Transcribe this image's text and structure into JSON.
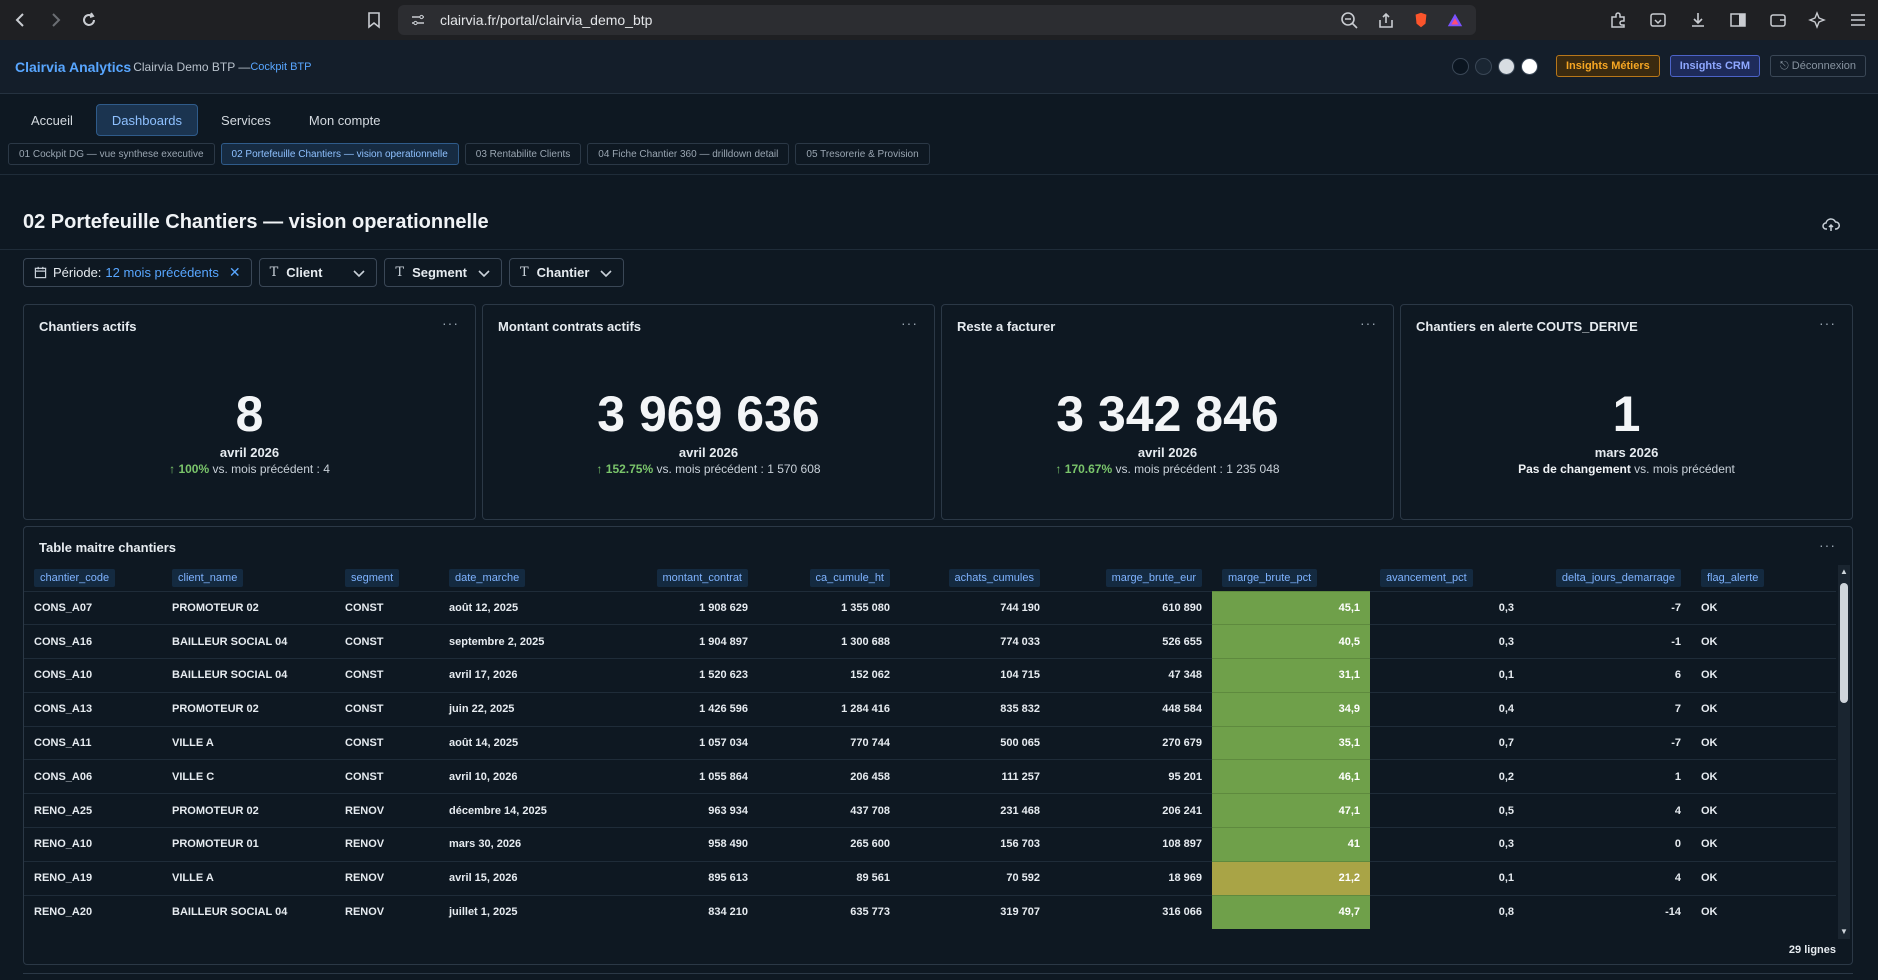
{
  "browser": {
    "url": "clairvia.fr/portal/clairvia_demo_btp"
  },
  "header": {
    "brand": "Clairvia Analytics",
    "workspace": "Clairvia Demo BTP — ",
    "cockpit": "Cockpit BTP",
    "buttons": {
      "metiers": "Insights Métiers",
      "crm": "Insights CRM",
      "logout": "⎋ Déconnexion"
    }
  },
  "main_tabs": [
    "Accueil",
    "Dashboards",
    "Services",
    "Mon compte"
  ],
  "sub_tabs": [
    "01 Cockpit DG — vue synthese executive",
    "02 Portefeuille Chantiers — vision operationnelle",
    "03 Rentabilite Clients",
    "04 Fiche Chantier 360 — drilldown detail",
    "05 Tresorerie & Provision"
  ],
  "dashboard": {
    "title": "02 Portefeuille Chantiers — vision operationnelle"
  },
  "filters": {
    "period_label": "Période:",
    "period_value": "12 mois précédents",
    "client": "Client",
    "segment": "Segment",
    "chantier": "Chantier"
  },
  "kpis": [
    {
      "title": "Chantiers actifs",
      "value": "8",
      "period": "avril 2026",
      "pct": "100%",
      "text": " vs. mois précédent : 4"
    },
    {
      "title": "Montant contrats actifs",
      "value": "3 969 636",
      "period": "avril 2026",
      "pct": "152.75%",
      "text": " vs. mois précédent : 1 570 608"
    },
    {
      "title": "Reste a facturer",
      "value": "3 342 846",
      "period": "avril 2026",
      "pct": "170.67%",
      "text": " vs. mois précédent : 1 235 048"
    },
    {
      "title": "Chantiers en alerte COUTS_DERIVE",
      "value": "1",
      "period": "mars 2026",
      "nochange": "Pas de changement",
      "text": " vs. mois précédent"
    }
  ],
  "table": {
    "title": "Table maitre chantiers",
    "columns": [
      "chantier_code",
      "client_name",
      "segment",
      "date_marche",
      "montant_contrat",
      "ca_cumule_ht",
      "achats_cumules",
      "marge_brute_eur",
      "marge_brute_pct",
      "avancement_pct",
      "delta_jours_demarrage",
      "flag_alerte"
    ],
    "rows": [
      [
        "CONS_A07",
        "PROMOTEUR 02",
        "CONST",
        "août 12, 2025",
        "1 908 629",
        "1 355 080",
        "744 190",
        "610 890",
        "45,1",
        "0,3",
        "-7",
        "OK"
      ],
      [
        "CONS_A16",
        "BAILLEUR SOCIAL 04",
        "CONST",
        "septembre 2, 2025",
        "1 904 897",
        "1 300 688",
        "774 033",
        "526 655",
        "40,5",
        "0,3",
        "-1",
        "OK"
      ],
      [
        "CONS_A10",
        "BAILLEUR SOCIAL 04",
        "CONST",
        "avril 17, 2026",
        "1 520 623",
        "152 062",
        "104 715",
        "47 348",
        "31,1",
        "0,1",
        "6",
        "OK"
      ],
      [
        "CONS_A13",
        "PROMOTEUR 02",
        "CONST",
        "juin 22, 2025",
        "1 426 596",
        "1 284 416",
        "835 832",
        "448 584",
        "34,9",
        "0,4",
        "7",
        "OK"
      ],
      [
        "CONS_A11",
        "VILLE A",
        "CONST",
        "août 14, 2025",
        "1 057 034",
        "770 744",
        "500 065",
        "270 679",
        "35,1",
        "0,7",
        "-7",
        "OK"
      ],
      [
        "CONS_A06",
        "VILLE C",
        "CONST",
        "avril 10, 2026",
        "1 055 864",
        "206 458",
        "111 257",
        "95 201",
        "46,1",
        "0,2",
        "1",
        "OK"
      ],
      [
        "RENO_A25",
        "PROMOTEUR 02",
        "RENOV",
        "décembre 14, 2025",
        "963 934",
        "437 708",
        "231 468",
        "206 241",
        "47,1",
        "0,5",
        "4",
        "OK"
      ],
      [
        "RENO_A10",
        "PROMOTEUR 01",
        "RENOV",
        "mars 30, 2026",
        "958 490",
        "265 600",
        "156 703",
        "108 897",
        "41",
        "0,3",
        "0",
        "OK"
      ],
      [
        "RENO_A19",
        "VILLE A",
        "RENOV",
        "avril 15, 2026",
        "895 613",
        "89 561",
        "70 592",
        "18 969",
        "21,2",
        "0,1",
        "4",
        "OK"
      ],
      [
        "RENO_A20",
        "BAILLEUR SOCIAL 04",
        "RENOV",
        "juillet 1, 2025",
        "834 210",
        "635 773",
        "319 707",
        "316 066",
        "49,7",
        "0,8",
        "-14",
        "OK"
      ]
    ],
    "row_count": "29 lignes"
  },
  "colors": {
    "accent": "#58a6ff",
    "heat_high": "#6fa04a",
    "heat_mid": "#a9a446"
  }
}
